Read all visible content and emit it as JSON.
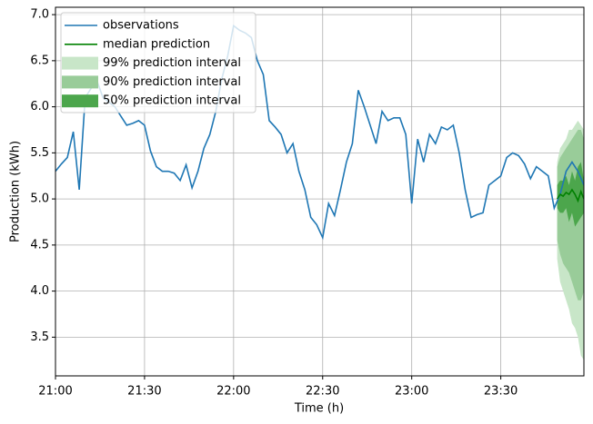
{
  "chart_data": {
    "type": "line",
    "xlabel": "Time (h)",
    "ylabel": "Production (kWh)",
    "xlim": [
      "21:00",
      "23:58"
    ],
    "xticks": [
      "21:00",
      "21:30",
      "22:00",
      "22:30",
      "23:00",
      "23:30"
    ],
    "ylim": [
      3.08,
      7.08
    ],
    "yticks": [
      3.5,
      {
        "value": 4,
        "label": "4.0"
      },
      4.5,
      {
        "value": 5,
        "label": "5.0"
      },
      5.5,
      {
        "value": 6,
        "label": "6.0"
      },
      6.5,
      {
        "value": 7,
        "label": "7.0"
      }
    ],
    "grid": true,
    "legend": "upper left",
    "x": [
      "21:00",
      "21:02",
      "21:04",
      "21:06",
      "21:08",
      "21:10",
      "21:12",
      "21:14",
      "21:16",
      "21:18",
      "21:20",
      "21:22",
      "21:24",
      "21:26",
      "21:28",
      "21:30",
      "21:32",
      "21:34",
      "21:36",
      "21:38",
      "21:40",
      "21:42",
      "21:44",
      "21:46",
      "21:48",
      "21:50",
      "21:52",
      "21:54",
      "21:56",
      "21:58",
      "22:00",
      "22:02",
      "22:04",
      "22:06",
      "22:08",
      "22:10",
      "22:12",
      "22:14",
      "22:16",
      "22:18",
      "22:20",
      "22:22",
      "22:24",
      "22:26",
      "22:28",
      "22:30",
      "22:32",
      "22:34",
      "22:36",
      "22:38",
      "22:40",
      "22:42",
      "22:44",
      "22:46",
      "22:48",
      "22:50",
      "22:52",
      "22:54",
      "22:56",
      "22:58",
      "23:00",
      "23:02",
      "23:04",
      "23:06",
      "23:08",
      "23:10",
      "23:12",
      "23:14",
      "23:16",
      "23:18",
      "23:20",
      "23:22",
      "23:24",
      "23:26",
      "23:28",
      "23:30",
      "23:32",
      "23:34",
      "23:36",
      "23:38",
      "23:40",
      "23:42",
      "23:44",
      "23:46",
      "23:48",
      "23:50",
      "23:52",
      "23:54",
      "23:56",
      "23:58"
    ],
    "series": [
      {
        "name": "observations",
        "color": "#1f77b4",
        "values": [
          5.3,
          5.38,
          5.45,
          5.73,
          5.1,
          6.1,
          6.2,
          6.28,
          6.1,
          6.05,
          6.0,
          5.9,
          5.8,
          5.82,
          5.85,
          5.8,
          5.52,
          5.35,
          5.3,
          5.3,
          5.28,
          5.2,
          5.37,
          5.12,
          5.3,
          5.55,
          5.7,
          5.95,
          6.3,
          6.55,
          6.88,
          6.83,
          6.8,
          6.75,
          6.5,
          6.35,
          5.85,
          5.78,
          5.7,
          5.5,
          5.6,
          5.3,
          5.1,
          4.8,
          4.72,
          4.58,
          4.95,
          4.82,
          5.1,
          5.4,
          5.6,
          6.18,
          6.0,
          5.8,
          5.6,
          5.95,
          5.85,
          5.88,
          5.88,
          5.7,
          4.95,
          5.65,
          5.4,
          5.7,
          5.6,
          5.78,
          5.75,
          5.8,
          5.5,
          5.1,
          4.8,
          4.83,
          4.85,
          5.15,
          5.2,
          5.25,
          5.45,
          5.5,
          5.47,
          5.38,
          5.22,
          5.35,
          5.3,
          5.25,
          4.9,
          5.05,
          5.3,
          5.4,
          5.3,
          5.15
        ]
      }
    ],
    "prediction": {
      "x": [
        "23:49",
        "23:50",
        "23:51",
        "23:52",
        "23:53",
        "23:54",
        "23:55",
        "23:56",
        "23:57",
        "23:58"
      ],
      "median": {
        "name": "median prediction",
        "color": "#008000",
        "values": [
          5.0,
          5.05,
          5.03,
          5.07,
          5.05,
          5.1,
          5.05,
          4.98,
          5.08,
          5.0
        ]
      },
      "intervals": [
        {
          "name": "99% prediction interval",
          "color": "#c8e6c8",
          "lower": [
            4.35,
            4.1,
            4.0,
            3.9,
            3.8,
            3.65,
            3.6,
            3.5,
            3.3,
            3.25
          ],
          "upper": [
            5.4,
            5.55,
            5.6,
            5.65,
            5.75,
            5.75,
            5.8,
            5.85,
            5.8,
            5.75
          ]
        },
        {
          "name": "90% prediction interval",
          "color": "#99cc99",
          "lower": [
            4.55,
            4.4,
            4.3,
            4.25,
            4.2,
            4.1,
            4.0,
            3.9,
            3.9,
            4.0
          ],
          "upper": [
            5.35,
            5.45,
            5.5,
            5.55,
            5.6,
            5.65,
            5.7,
            5.75,
            5.75,
            5.65
          ]
        },
        {
          "name": "50% prediction interval",
          "color": "#4ca64c",
          "lower": [
            4.9,
            4.85,
            4.85,
            4.9,
            4.75,
            4.85,
            4.7,
            4.75,
            4.8,
            4.85
          ],
          "upper": [
            5.15,
            5.2,
            5.2,
            5.25,
            5.15,
            5.3,
            5.2,
            5.35,
            5.4,
            5.2
          ]
        }
      ]
    }
  }
}
